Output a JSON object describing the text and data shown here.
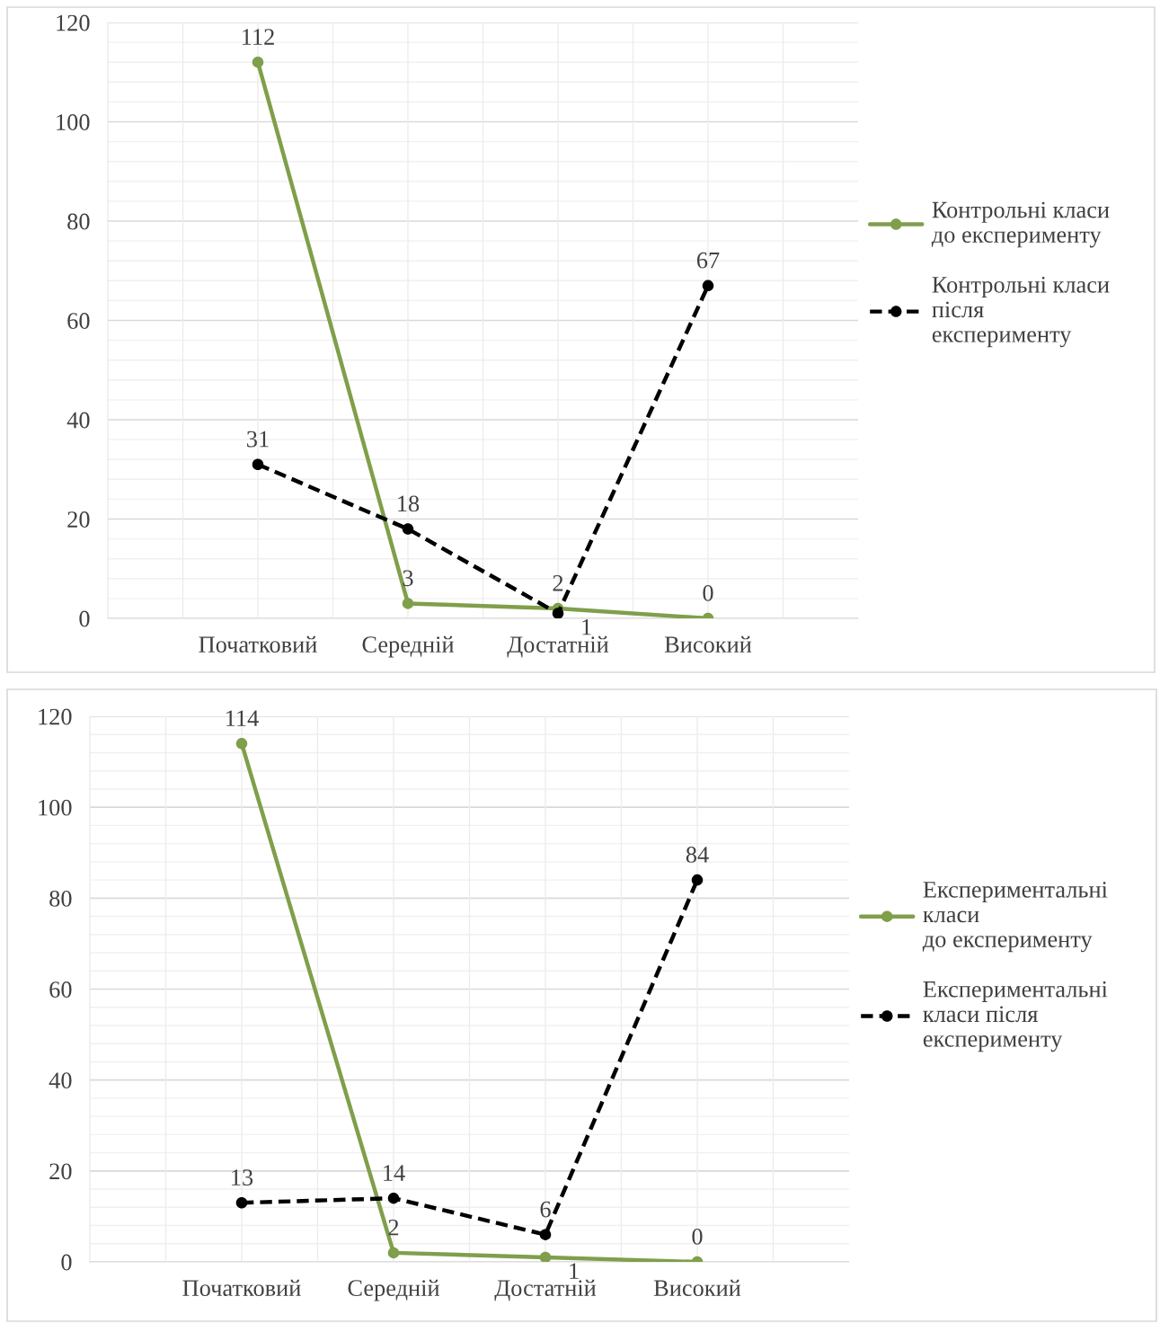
{
  "chart_data": [
    {
      "type": "line",
      "categories": [
        "Початковий",
        "Середній",
        "Достатній",
        "Високий"
      ],
      "series": [
        {
          "name": "Контрольні класи\nдо експерименту",
          "color": "#7f9f4a",
          "values": [
            112,
            3,
            2,
            0
          ],
          "line_style": "solid"
        },
        {
          "name": "Контрольні класи\nпісля\nексперименту",
          "color": "#000000",
          "values": [
            31,
            18,
            1,
            67
          ],
          "line_style": "dashed"
        }
      ],
      "ylim": [
        0,
        120
      ],
      "yticks": [
        0,
        20,
        40,
        60,
        80,
        100,
        120
      ],
      "grid": true,
      "legend": "right",
      "marker": "circle",
      "data_labels": true
    },
    {
      "type": "line",
      "categories": [
        "Початковий",
        "Середній",
        "Достатній",
        "Високий"
      ],
      "series": [
        {
          "name": "Експериментальні\nкласи\nдо експерименту",
          "color": "#7f9f4a",
          "values": [
            114,
            2,
            1,
            0
          ],
          "line_style": "solid"
        },
        {
          "name": "Експериментальні\nкласи після\nексперименту",
          "color": "#000000",
          "values": [
            13,
            14,
            6,
            84
          ],
          "line_style": "dashed"
        }
      ],
      "ylim": [
        0,
        120
      ],
      "yticks": [
        0,
        20,
        40,
        60,
        80,
        100,
        120
      ],
      "grid": true,
      "legend": "right",
      "marker": "circle",
      "data_labels": true
    }
  ]
}
